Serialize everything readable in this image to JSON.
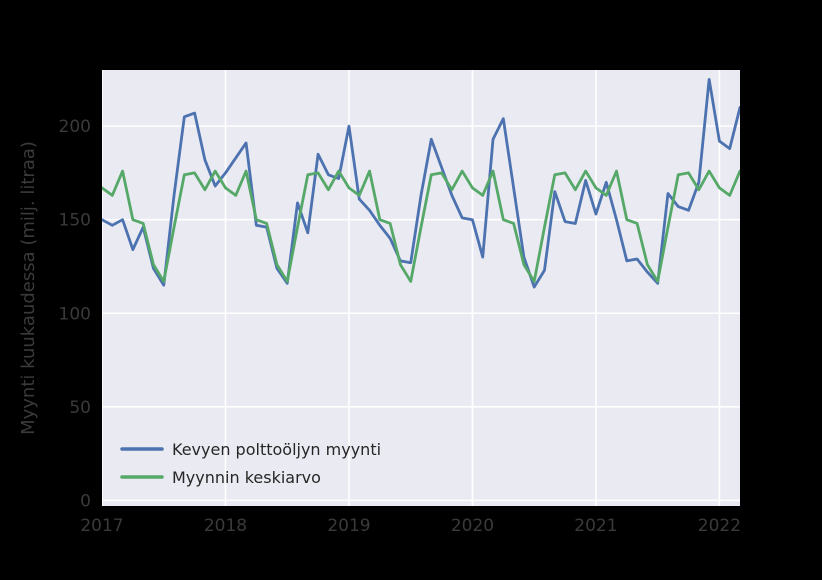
{
  "figure": {
    "background_color": "#000000",
    "plot_background_color": "#eaeaf2",
    "grid_color": "#ffffff",
    "tick_label_color": "#3a3a3a",
    "legend_text_color": "#262626"
  },
  "chart_data": {
    "type": "line",
    "title": "",
    "xlabel": "",
    "ylabel": "Myynti kuukaudessa (milj. litraa)",
    "grid": true,
    "legend_position": "lower left",
    "x_start_month": "2017-01",
    "x_end_month": "2022-03",
    "x_tick_labels": [
      "2017",
      "2018",
      "2019",
      "2020",
      "2021",
      "2022"
    ],
    "x_tick_month_indices": [
      0,
      12,
      24,
      36,
      48,
      60
    ],
    "y_ticks": [
      0,
      50,
      100,
      150,
      200
    ],
    "ylim": [
      -3,
      230
    ],
    "xlim": [
      0,
      62
    ],
    "series": [
      {
        "name": "Kevyen polttoöljyn myynti",
        "color": "#4c72b0",
        "values": [
          150,
          147,
          150,
          134,
          146,
          124,
          115,
          163,
          205,
          207,
          182,
          168,
          175,
          183,
          191,
          147,
          146,
          124,
          116,
          159,
          143,
          185,
          174,
          172,
          200,
          161,
          155,
          147,
          140,
          128,
          127,
          163,
          193,
          178,
          163,
          151,
          150,
          130,
          193,
          204,
          167,
          130,
          114,
          123,
          165,
          149,
          148,
          171,
          153,
          170,
          150,
          128,
          129,
          122,
          116,
          164,
          157,
          155,
          170,
          225,
          192,
          188,
          210
        ]
      },
      {
        "name": "Myynnin keskiarvo",
        "color": "#55a868",
        "values": [
          167,
          163,
          176,
          150,
          148,
          126,
          117,
          146,
          174,
          175,
          166,
          176,
          167,
          163,
          176,
          150,
          148,
          126,
          117,
          146,
          174,
          175,
          166,
          176,
          167,
          163,
          176,
          150,
          148,
          126,
          117,
          146,
          174,
          175,
          166,
          176,
          167,
          163,
          176,
          150,
          148,
          126,
          117,
          146,
          174,
          175,
          166,
          176,
          167,
          163,
          176,
          150,
          148,
          126,
          117,
          146,
          174,
          175,
          166,
          176,
          167,
          163,
          176
        ]
      }
    ]
  }
}
